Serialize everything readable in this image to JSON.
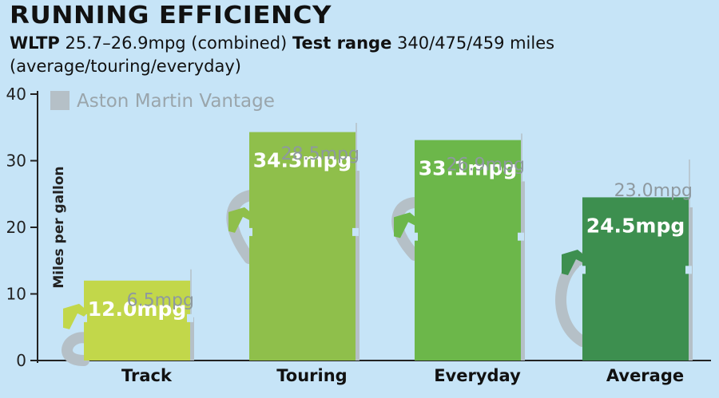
{
  "header": {
    "title": "RUNNING EFFICIENCY",
    "wltp_label": "WLTP",
    "wltp_value": "25.7–26.9mpg (combined)",
    "range_label": "Test range",
    "range_value": "340/475/459 miles (average/touring/everyday)"
  },
  "colors": {
    "background": "#c6e4f7",
    "comparison": "#b5c0c7",
    "pump_icon_fill": "#b5c0c7",
    "pump_hose": "#b5c0c7"
  },
  "chart_data": {
    "type": "bar",
    "ylabel": "Miles per gallon",
    "ylim": [
      0,
      40
    ],
    "yticks": [
      0,
      10,
      20,
      30,
      40
    ],
    "categories": [
      "Track",
      "Touring",
      "Everyday",
      "Average"
    ],
    "series": [
      {
        "values": [
          12.0,
          34.3,
          33.1,
          24.5
        ],
        "labels": [
          "12.0mpg",
          "34.3mpg",
          "33.1mpg",
          "24.5mpg"
        ],
        "colors": [
          "#c2d74a",
          "#8fbf4b",
          "#6cb74a",
          "#3d8f4f"
        ]
      },
      {
        "name": "Aston Martin Vantage",
        "values": [
          6.5,
          28.5,
          26.9,
          23.0
        ],
        "labels": [
          "6.5mpg",
          "28.5mpg",
          "26.9mpg",
          "23.0mpg"
        ],
        "color": "#b5c0c7"
      }
    ],
    "legend": "top-left"
  }
}
